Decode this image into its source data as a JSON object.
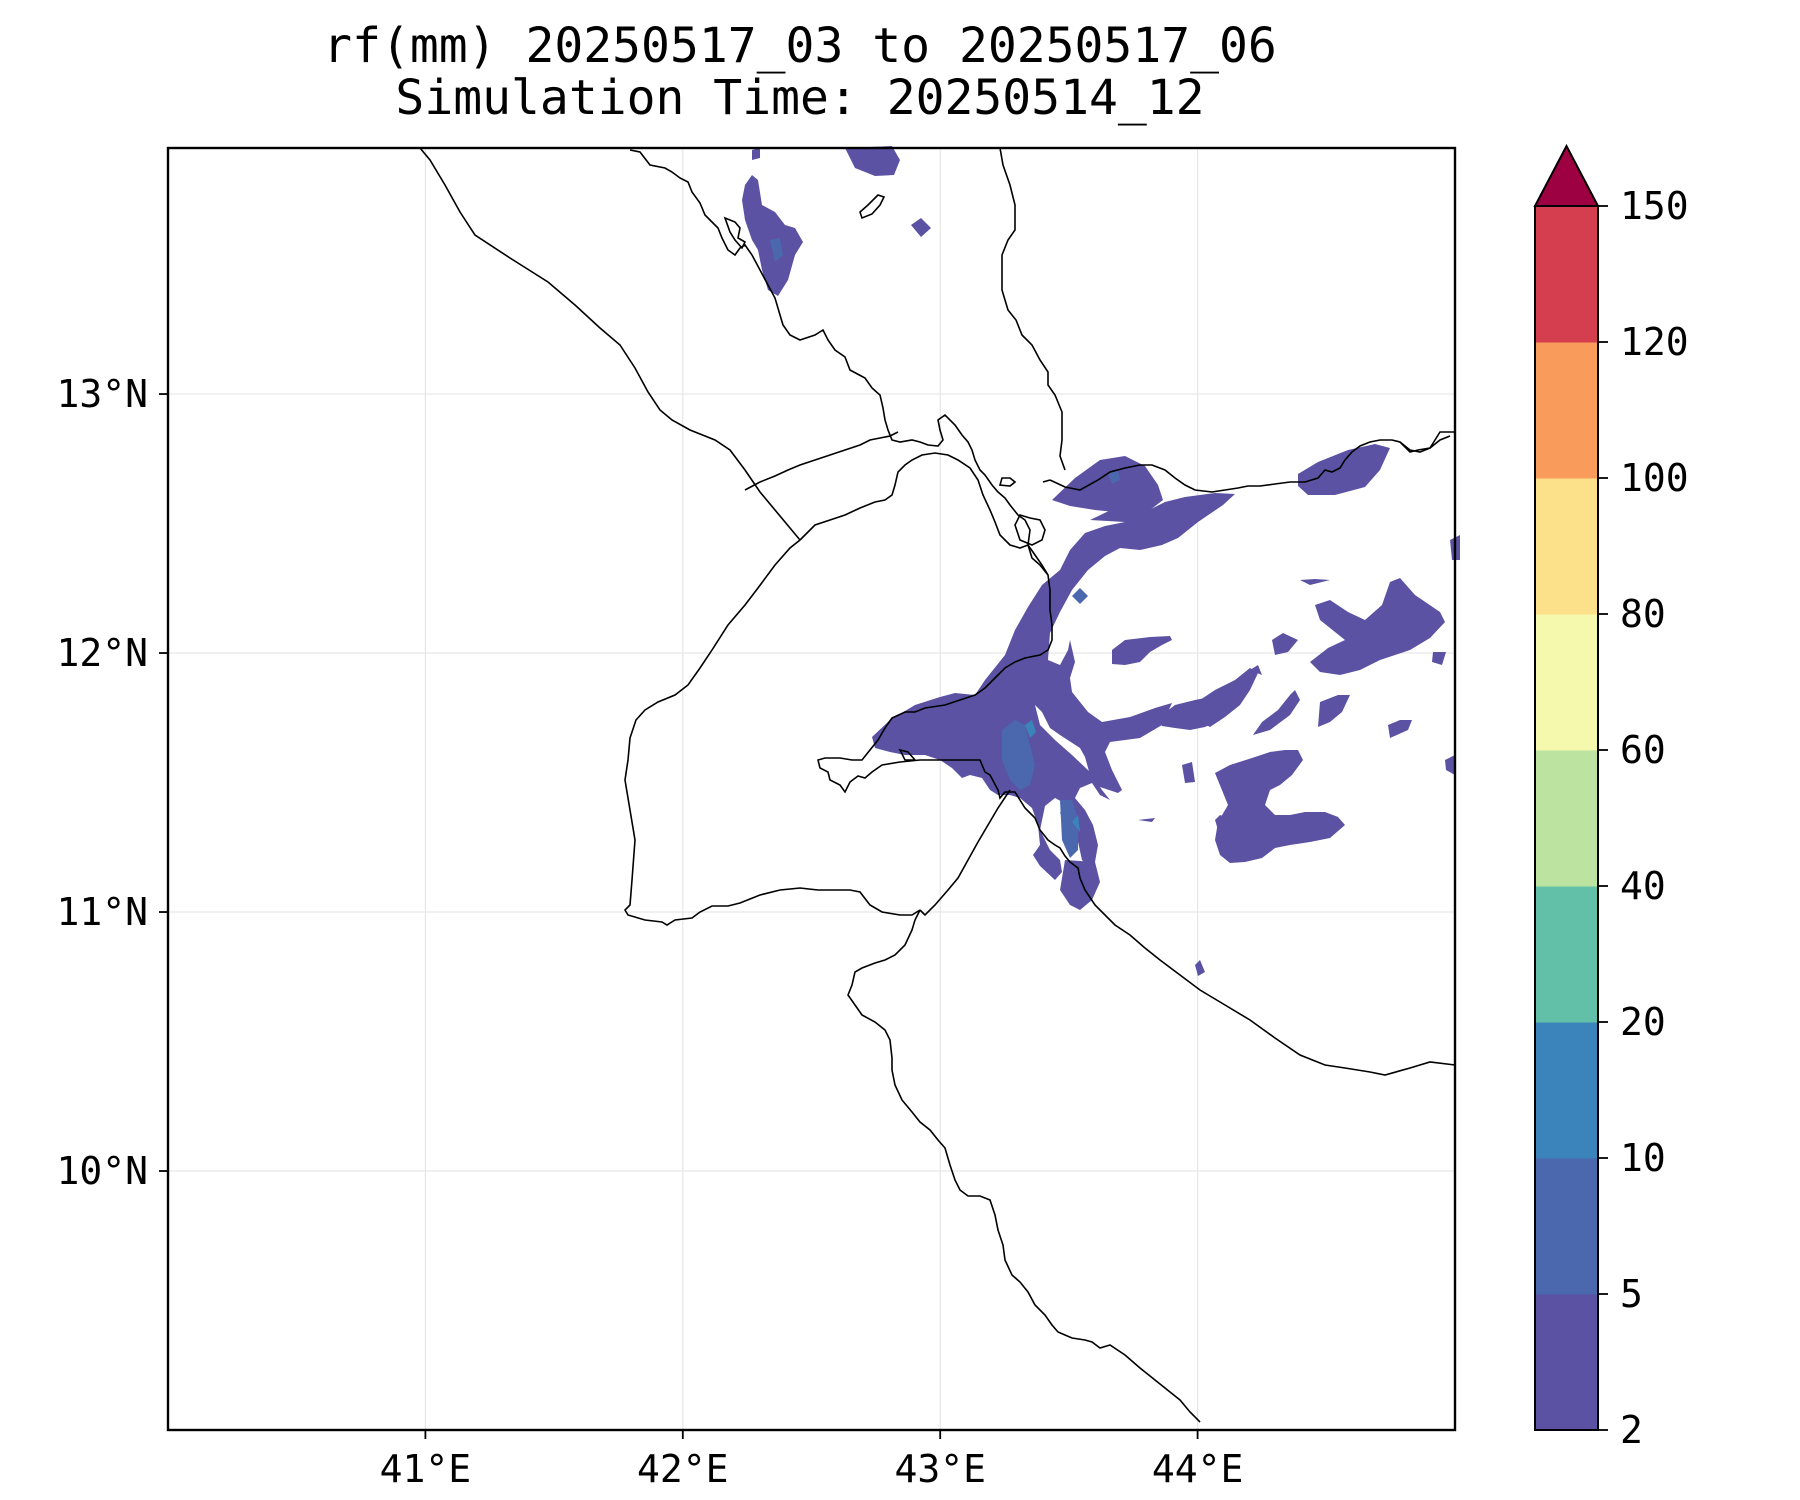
{
  "figure": {
    "title_line1": "rf(mm) 20250517_03 to 20250517_06",
    "title_line2": "Simulation Time: 20250514_12"
  },
  "map": {
    "lon_range": [
      40.0,
      45.0
    ],
    "lat_range": [
      9.0,
      13.95
    ],
    "gridlines": true,
    "lon_ticks": [
      {
        "value": 41,
        "label": "41°E"
      },
      {
        "value": 42,
        "label": "42°E"
      },
      {
        "value": 43,
        "label": "43°E"
      },
      {
        "value": 44,
        "label": "44°E"
      }
    ],
    "lat_ticks": [
      {
        "value": 13,
        "label": "13°N"
      },
      {
        "value": 12,
        "label": "12°N"
      },
      {
        "value": 11,
        "label": "11°N"
      },
      {
        "value": 10,
        "label": "10°N"
      }
    ]
  },
  "colorbar": {
    "levels": [
      {
        "label": "2",
        "value": 2
      },
      {
        "label": "5",
        "value": 5
      },
      {
        "label": "10",
        "value": 10
      },
      {
        "label": "20",
        "value": 20
      },
      {
        "label": "40",
        "value": 40
      },
      {
        "label": "60",
        "value": 60
      },
      {
        "label": "80",
        "value": 80
      },
      {
        "label": "100",
        "value": 100
      },
      {
        "label": "120",
        "value": 120
      },
      {
        "label": "150",
        "value": 150
      }
    ],
    "colors": [
      "#5b52a3",
      "#4b67ae",
      "#3a84bb",
      "#62bfa8",
      "#bce4a0",
      "#f4f9ad",
      "#fce08a",
      "#f99c5b",
      "#d53e4f"
    ],
    "extend_color": "#9e0142",
    "extend": "max",
    "orientation": "vertical"
  }
}
